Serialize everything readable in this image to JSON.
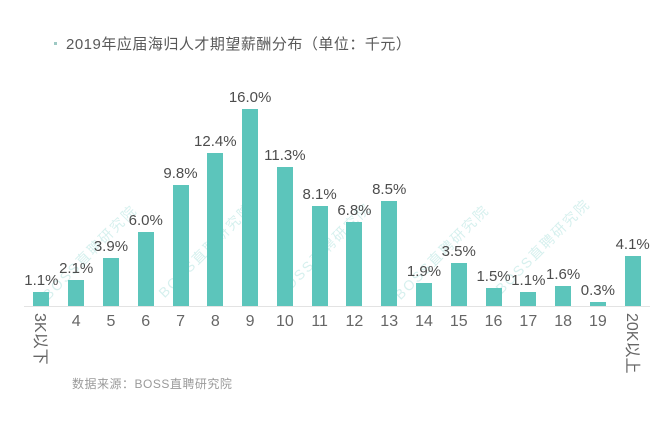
{
  "title": {
    "bullet": "·",
    "text": "2019年应届海归人才期望薪酬分布（单位：千元）"
  },
  "source": "数据来源：BOSS直聘研究院",
  "watermark": {
    "text": "BOSS直聘研究院"
  },
  "colors": {
    "bar": "#5cc5bb",
    "value_label": "#4d4d4d",
    "tick_label": "#666666",
    "title": "#595959",
    "source": "#9a9a9a",
    "axis_line": "#e3e3e3",
    "watermark": "rgba(95,197,188,0.26)"
  },
  "chart_data": {
    "type": "bar",
    "title": "2019年应届海归人才期望薪酬分布（单位：千元）",
    "unit": "%",
    "categories": [
      "3K以下",
      "4",
      "5",
      "6",
      "7",
      "8",
      "9",
      "10",
      "11",
      "12",
      "13",
      "14",
      "15",
      "16",
      "17",
      "18",
      "19",
      "20K以上"
    ],
    "values": [
      1.1,
      2.1,
      3.9,
      6.0,
      9.8,
      12.4,
      16.0,
      11.3,
      8.1,
      6.8,
      8.5,
      1.9,
      3.5,
      1.5,
      1.1,
      1.6,
      0.3,
      4.1
    ],
    "value_labels": [
      "1.1%",
      "2.1%",
      "3.9%",
      "6.0%",
      "9.8%",
      "12.4%",
      "16.0%",
      "11.3%",
      "8.1%",
      "6.8%",
      "8.5%",
      "1.9%",
      "3.5%",
      "1.5%",
      "1.1%",
      "1.6%",
      "0.3%",
      "4.1%"
    ],
    "rotated_tick_labels": [
      "3K以下",
      "20K以上"
    ],
    "xlabel": "",
    "ylabel": "",
    "ylim": [
      0,
      17
    ],
    "grid": false,
    "legend": false,
    "source": "数据来源：BOSS直聘研究院"
  }
}
